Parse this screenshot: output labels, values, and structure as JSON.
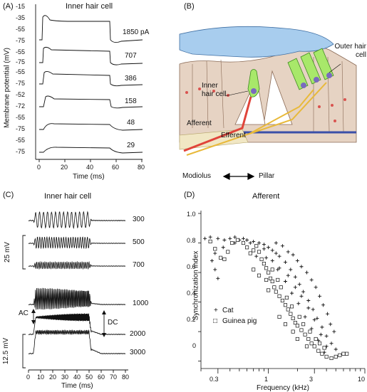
{
  "panels": {
    "a": {
      "label": "(A)",
      "title": "Inner hair cell",
      "ylabel": "Membrane potential (mV)",
      "xlabel": "Time (ms)",
      "xticks": [
        "0",
        "20",
        "40",
        "60",
        "80"
      ],
      "traces": [
        {
          "current": "1850 pA",
          "yticks": [
            "-15",
            "-35",
            "-55",
            "-75"
          ]
        },
        {
          "current": "707",
          "yticks": [
            "-55",
            "-75"
          ]
        },
        {
          "current": "386",
          "yticks": [
            "-55",
            "-75"
          ]
        },
        {
          "current": "158",
          "yticks": [
            "-52",
            "-72"
          ]
        },
        {
          "current": "48",
          "yticks": [
            "-55",
            "-75"
          ]
        },
        {
          "current": "29",
          "yticks": [
            "-55",
            "-75"
          ]
        }
      ]
    },
    "b": {
      "label": "(B)",
      "outer_hair_cell": "Outer hair cell",
      "inner_hair_cell": "Inner hair cell",
      "afferent": "Afferent",
      "efferent": "Efferent",
      "modiolus": "Modiolus",
      "pillar": "Pillar"
    },
    "c": {
      "label": "(C)",
      "title": "Inner hair cell",
      "xlabel": "Time (ms)",
      "xticks": [
        "0",
        "10",
        "20",
        "30",
        "40",
        "50",
        "60",
        "70",
        "80"
      ],
      "scale_top": "25 mV",
      "scale_bottom": "12.5 mV",
      "ac_label": "AC",
      "dc_label": "DC",
      "frequencies": [
        "300",
        "500",
        "700",
        "1000",
        "2000",
        "3000"
      ]
    },
    "d": {
      "label": "(D)",
      "title": "Afferent",
      "ylabel": "Synchronization index",
      "xlabel": "Frequency (kHz)",
      "yticks": [
        "1.0",
        "0.8",
        "0.6",
        "0.4",
        "0.2",
        "0"
      ],
      "xticks": [
        "0.3",
        "1",
        "3",
        "10"
      ],
      "legend": [
        {
          "marker": "+",
          "name": "Cat"
        },
        {
          "marker": "□",
          "name": "Guinea pig"
        }
      ]
    }
  },
  "chart_data": [
    {
      "type": "scatter",
      "title": "Afferent",
      "xlabel": "Frequency (kHz)",
      "ylabel": "Synchronization index",
      "xscale": "log",
      "xlim": [
        0.2,
        10
      ],
      "ylim": [
        -0.05,
        1.0
      ],
      "legend_position": "bottom-left",
      "series": [
        {
          "name": "Cat",
          "marker": "+",
          "points": [
            [
              0.22,
              0.83
            ],
            [
              0.25,
              0.84
            ],
            [
              0.3,
              0.83
            ],
            [
              0.35,
              0.82
            ],
            [
              0.4,
              0.83
            ],
            [
              0.45,
              0.84
            ],
            [
              0.5,
              0.82
            ],
            [
              0.55,
              0.83
            ],
            [
              0.6,
              0.82
            ],
            [
              0.7,
              0.81
            ],
            [
              0.8,
              0.8
            ],
            [
              0.9,
              0.79
            ],
            [
              1.0,
              0.77
            ],
            [
              1.1,
              0.75
            ],
            [
              1.2,
              0.73
            ],
            [
              1.3,
              0.71
            ],
            [
              1.5,
              0.67
            ],
            [
              1.7,
              0.62
            ],
            [
              1.9,
              0.57
            ],
            [
              2.1,
              0.52
            ],
            [
              2.3,
              0.47
            ],
            [
              2.6,
              0.41
            ],
            [
              2.9,
              0.35
            ],
            [
              3.2,
              0.29
            ],
            [
              3.6,
              0.23
            ],
            [
              4.0,
              0.17
            ],
            [
              4.5,
              0.12
            ],
            [
              5.0,
              0.08
            ],
            [
              0.26,
              0.68
            ],
            [
              0.28,
              0.62
            ],
            [
              0.3,
              0.56
            ],
            [
              0.28,
              0.73
            ],
            [
              0.34,
              0.77
            ],
            [
              0.45,
              0.8
            ],
            [
              0.65,
              0.8
            ],
            [
              0.9,
              0.76
            ],
            [
              1.2,
              0.8
            ],
            [
              1.4,
              0.78
            ],
            [
              1.6,
              0.74
            ],
            [
              1.8,
              0.72
            ],
            [
              2.0,
              0.68
            ],
            [
              2.2,
              0.64
            ],
            [
              2.5,
              0.6
            ],
            [
              2.8,
              0.55
            ],
            [
              3.1,
              0.5
            ],
            [
              3.4,
              0.44
            ],
            [
              3.7,
              0.38
            ],
            [
              4.1,
              0.32
            ],
            [
              4.4,
              0.25
            ],
            [
              4.8,
              0.2
            ],
            [
              1.1,
              0.68
            ],
            [
              1.3,
              0.63
            ],
            [
              1.6,
              0.58
            ],
            [
              1.9,
              0.5
            ],
            [
              2.2,
              0.44
            ],
            [
              2.6,
              0.36
            ],
            [
              3.0,
              0.28
            ],
            [
              3.5,
              0.18
            ],
            [
              4.0,
              0.1
            ],
            [
              2.4,
              0.3
            ],
            [
              2.8,
              0.22
            ],
            [
              3.3,
              0.14
            ],
            [
              3.8,
              0.06
            ],
            [
              0.75,
              0.71
            ],
            [
              0.95,
              0.7
            ],
            [
              1.25,
              0.62
            ],
            [
              1.5,
              0.54
            ],
            [
              1.75,
              0.46
            ],
            [
              2.05,
              0.39
            ]
          ]
        },
        {
          "name": "Guinea pig",
          "marker": "□",
          "points": [
            [
              0.25,
              0.81
            ],
            [
              0.28,
              0.76
            ],
            [
              0.32,
              0.7
            ],
            [
              0.35,
              0.69
            ],
            [
              0.38,
              0.74
            ],
            [
              0.42,
              0.8
            ],
            [
              0.48,
              0.82
            ],
            [
              0.55,
              0.8
            ],
            [
              0.6,
              0.77
            ],
            [
              0.65,
              0.73
            ],
            [
              0.7,
              0.75
            ],
            [
              0.75,
              0.78
            ],
            [
              0.8,
              0.74
            ],
            [
              0.85,
              0.69
            ],
            [
              0.9,
              0.66
            ],
            [
              0.95,
              0.63
            ],
            [
              1.0,
              0.6
            ],
            [
              1.05,
              0.56
            ],
            [
              1.1,
              0.54
            ],
            [
              1.15,
              0.5
            ],
            [
              1.2,
              0.47
            ],
            [
              1.3,
              0.44
            ],
            [
              1.4,
              0.41
            ],
            [
              1.5,
              0.38
            ],
            [
              1.6,
              0.35
            ],
            [
              1.7,
              0.32
            ],
            [
              1.8,
              0.29
            ],
            [
              1.9,
              0.26
            ],
            [
              2.0,
              0.24
            ],
            [
              2.2,
              0.21
            ],
            [
              2.4,
              0.18
            ],
            [
              2.6,
              0.15
            ],
            [
              2.8,
              0.12
            ],
            [
              3.0,
              0.1
            ],
            [
              3.3,
              0.07
            ],
            [
              3.6,
              0.05
            ],
            [
              4.0,
              0.03
            ],
            [
              4.5,
              0.02
            ],
            [
              5.0,
              0.03
            ],
            [
              5.5,
              0.04
            ],
            [
              6.0,
              0.05
            ],
            [
              6.5,
              0.05
            ],
            [
              1.1,
              0.62
            ],
            [
              1.25,
              0.55
            ],
            [
              1.35,
              0.5
            ],
            [
              1.55,
              0.43
            ],
            [
              1.75,
              0.37
            ],
            [
              2.1,
              0.3
            ],
            [
              2.3,
              0.25
            ],
            [
              2.7,
              0.2
            ],
            [
              3.1,
              0.15
            ],
            [
              3.4,
              0.12
            ],
            [
              3.8,
              0.09
            ],
            [
              1.3,
              0.3
            ],
            [
              1.5,
              0.25
            ],
            [
              1.8,
              0.2
            ],
            [
              2.0,
              0.15
            ],
            [
              2.5,
              0.1
            ],
            [
              0.7,
              0.62
            ],
            [
              0.8,
              0.58
            ],
            [
              0.95,
              0.55
            ],
            [
              1.0,
              0.48
            ]
          ]
        }
      ]
    }
  ]
}
